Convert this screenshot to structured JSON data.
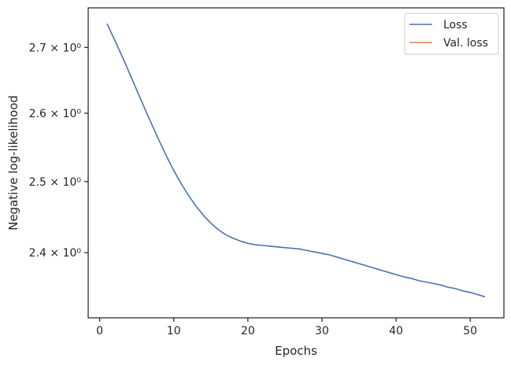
{
  "chart_data": {
    "type": "line",
    "title": "",
    "xlabel": "Epochs",
    "ylabel": "Negative log-likelihood",
    "xlim": [
      -1.55,
      54.55
    ],
    "ylim": [
      2.312,
      2.762
    ],
    "yscale": "log",
    "grid": false,
    "legend_position": "top-right",
    "x_ticks": [
      0,
      10,
      20,
      30,
      40,
      50
    ],
    "x_tick_labels": [
      "0",
      "10",
      "20",
      "30",
      "40",
      "50"
    ],
    "y_ticks": [
      2.4,
      2.5,
      2.6,
      2.7
    ],
    "y_tick_labels": [
      "2.4 × 10⁰",
      "2.5 × 10⁰",
      "2.6 × 10⁰",
      "2.7 × 10⁰"
    ],
    "series": [
      {
        "name": "Loss",
        "color": "#4c72b0",
        "x": [
          1,
          2,
          3,
          4,
          5,
          6,
          7,
          8,
          9,
          10,
          11,
          12,
          13,
          14,
          15,
          16,
          17,
          18,
          19,
          20,
          21,
          22,
          23,
          24,
          25,
          26,
          27,
          28,
          29,
          30,
          31,
          32,
          33,
          34,
          35,
          36,
          37,
          38,
          39,
          40,
          41,
          42,
          43,
          44,
          45,
          46,
          47,
          48,
          49,
          50,
          51,
          52
        ],
        "values": [
          2.737,
          2.712,
          2.687,
          2.661,
          2.635,
          2.609,
          2.584,
          2.56,
          2.537,
          2.516,
          2.497,
          2.48,
          2.465,
          2.452,
          2.441,
          2.432,
          2.425,
          2.42,
          2.416,
          2.413,
          2.411,
          2.41,
          2.409,
          2.408,
          2.407,
          2.406,
          2.405,
          2.403,
          2.401,
          2.399,
          2.397,
          2.394,
          2.391,
          2.388,
          2.385,
          2.382,
          2.379,
          2.376,
          2.373,
          2.37,
          2.367,
          2.365,
          2.362,
          2.36,
          2.358,
          2.356,
          2.353,
          2.351,
          2.348,
          2.346,
          2.343,
          2.34
        ]
      },
      {
        "name": "Val. loss",
        "color": "#dd8452",
        "x": [],
        "values": []
      }
    ]
  }
}
